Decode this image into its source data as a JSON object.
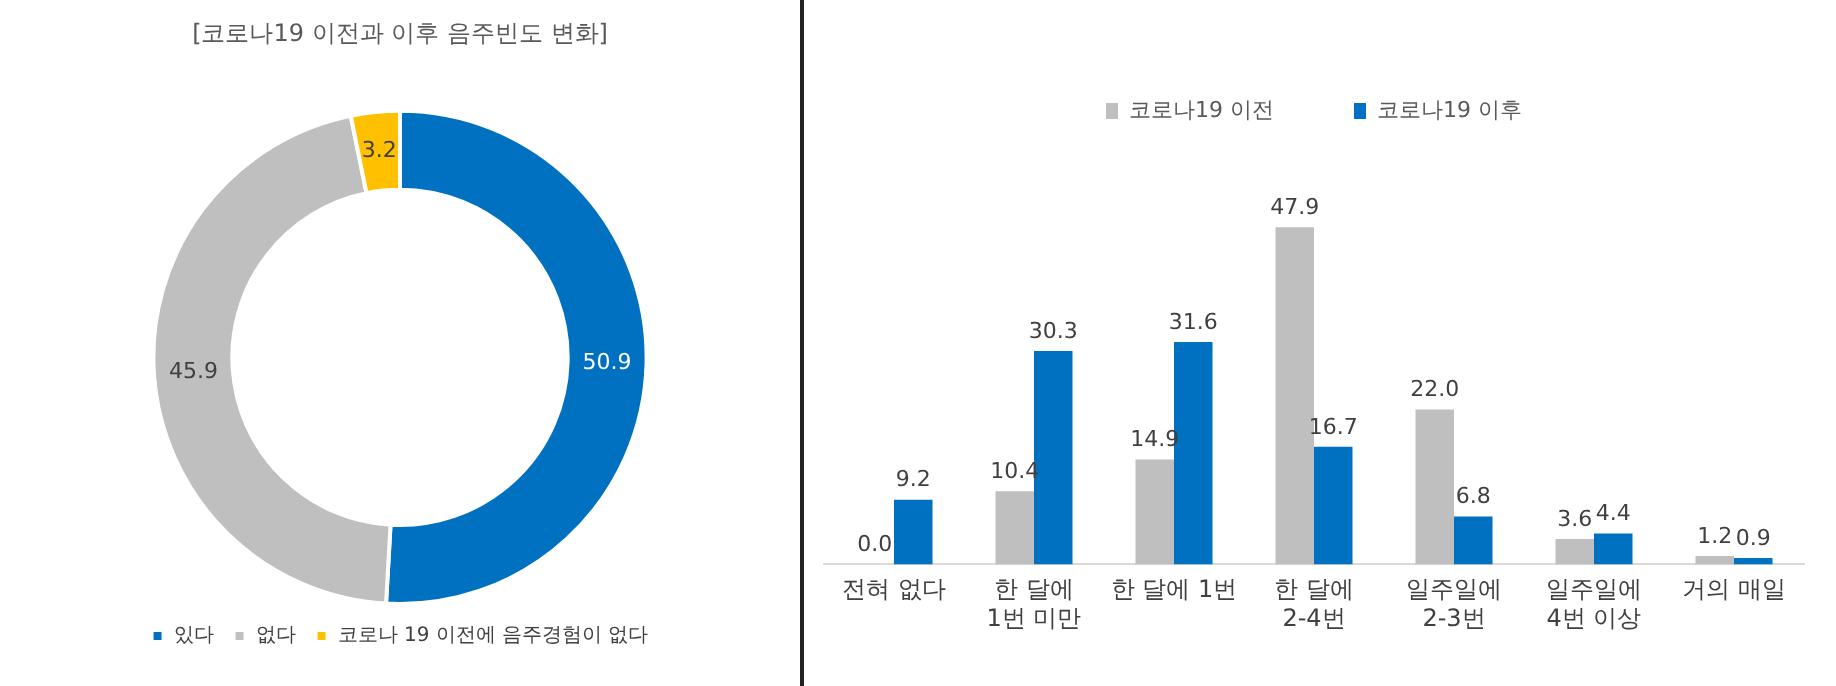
{
  "chart_data": [
    {
      "type": "donut",
      "title": "[코로나19 이전과 이후 음주빈도 변화]",
      "categories": [
        "있다",
        "없다",
        "코로나 19 이전에 음주경험이 없다"
      ],
      "values": [
        50.9,
        45.9,
        3.2
      ],
      "colors": [
        "#0070c0",
        "#bfbfbf",
        "#ffc000"
      ],
      "legend": "bottom",
      "data_labels": true
    },
    {
      "type": "bar",
      "categories": [
        "전혀 없다",
        "한 달에\n1번 미만",
        "한 달에 1번",
        "한 달에\n2-4번",
        "일주일에\n2-3번",
        "일주일에\n4번 이상",
        "거의 매일"
      ],
      "legend": "top",
      "series": [
        {
          "name": "코로나19 이전",
          "color": "#bfbfbf",
          "values": [
            0,
            10.4,
            14.9,
            47.9,
            22,
            3.6,
            1.2
          ],
          "value_labels": [
            "0.0",
            "10.4",
            "14.9",
            "47.9",
            "22.0",
            "3.6",
            "1.2"
          ]
        },
        {
          "name": "코로나19 이후",
          "color": "#0070c0",
          "values": [
            9.2,
            30.3,
            31.6,
            16.7,
            6.8,
            4.4,
            0.9
          ],
          "value_labels": [
            "9.2",
            "30.3",
            "31.6",
            "16.7",
            "6.8",
            "4.4",
            "0.9"
          ]
        }
      ]
    }
  ]
}
